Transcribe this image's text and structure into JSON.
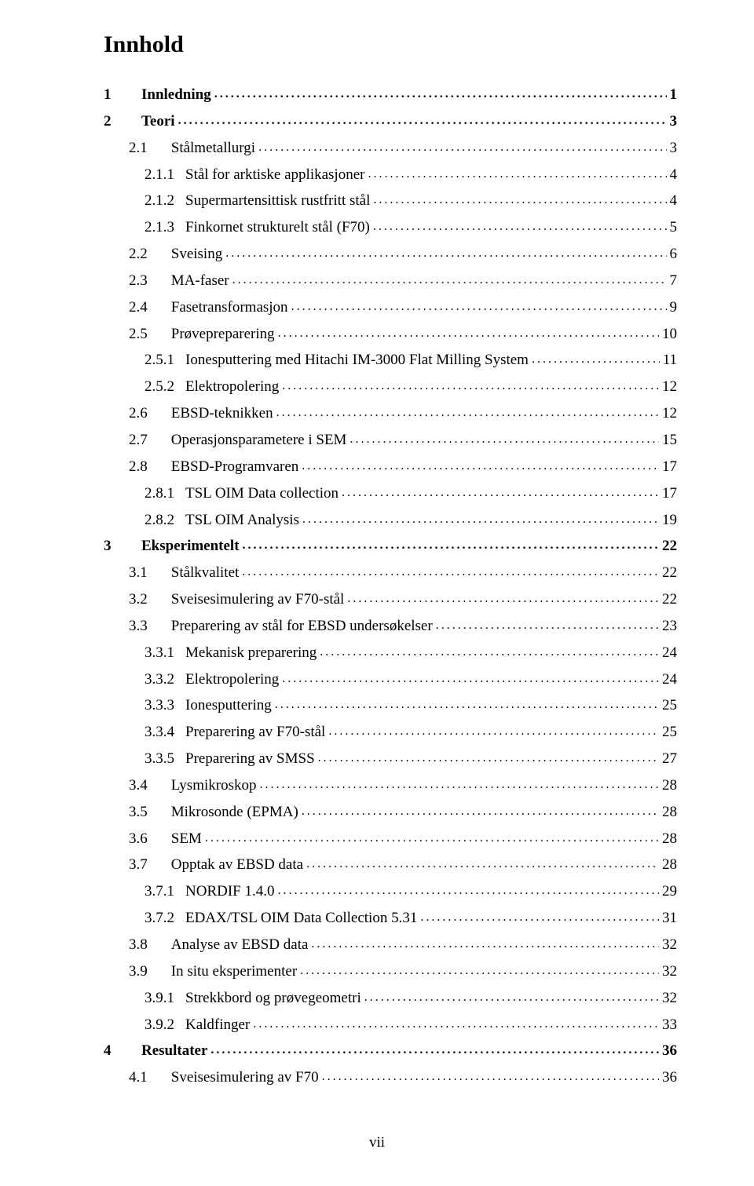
{
  "title": "Innhold",
  "page_number": "vii",
  "text_color": "#000000",
  "background_color": "#ffffff",
  "font_family": "Times New Roman",
  "base_font_size_pt": 14,
  "title_font_size_pt": 22,
  "entries": [
    {
      "level": 1,
      "num": "1",
      "label": "Innledning",
      "page": "1"
    },
    {
      "level": 1,
      "num": "2",
      "label": "Teori",
      "page": "3"
    },
    {
      "level": 2,
      "num": "2.1",
      "label": "Stålmetallurgi",
      "page": "3"
    },
    {
      "level": 3,
      "num": "2.1.1",
      "label": "Stål for arktiske applikasjoner",
      "page": "4"
    },
    {
      "level": 3,
      "num": "2.1.2",
      "label": "Supermartensittisk rustfritt stål",
      "page": "4"
    },
    {
      "level": 3,
      "num": "2.1.3",
      "label": "Finkornet strukturelt stål (F70)",
      "page": "5"
    },
    {
      "level": 2,
      "num": "2.2",
      "label": "Sveising",
      "page": "6"
    },
    {
      "level": 2,
      "num": "2.3",
      "label": "MA-faser",
      "page": "7"
    },
    {
      "level": 2,
      "num": "2.4",
      "label": "Fasetransformasjon",
      "page": "9"
    },
    {
      "level": 2,
      "num": "2.5",
      "label": "Prøvepreparering",
      "page": "10"
    },
    {
      "level": 3,
      "num": "2.5.1",
      "label": "Ionesputtering med Hitachi IM-3000 Flat Milling System",
      "page": "11"
    },
    {
      "level": 3,
      "num": "2.5.2",
      "label": "Elektropolering",
      "page": "12"
    },
    {
      "level": 2,
      "num": "2.6",
      "label": "EBSD-teknikken",
      "page": "12"
    },
    {
      "level": 2,
      "num": "2.7",
      "label": "Operasjonsparametere i SEM",
      "page": "15"
    },
    {
      "level": 2,
      "num": "2.8",
      "label": "EBSD-Programvaren",
      "page": "17"
    },
    {
      "level": 3,
      "num": "2.8.1",
      "label": "TSL OIM Data collection",
      "page": "17"
    },
    {
      "level": 3,
      "num": "2.8.2",
      "label": "TSL OIM Analysis",
      "page": "19"
    },
    {
      "level": 1,
      "num": "3",
      "label": "Eksperimentelt",
      "page": "22"
    },
    {
      "level": 2,
      "num": "3.1",
      "label": "Stålkvalitet",
      "page": "22"
    },
    {
      "level": 2,
      "num": "3.2",
      "label": "Sveisesimulering av F70-stål",
      "page": "22"
    },
    {
      "level": 2,
      "num": "3.3",
      "label": "Preparering av stål for EBSD undersøkelser",
      "page": "23"
    },
    {
      "level": 3,
      "num": "3.3.1",
      "label": "Mekanisk preparering",
      "page": "24"
    },
    {
      "level": 3,
      "num": "3.3.2",
      "label": "Elektropolering",
      "page": "24"
    },
    {
      "level": 3,
      "num": "3.3.3",
      "label": "Ionesputtering",
      "page": "25"
    },
    {
      "level": 3,
      "num": "3.3.4",
      "label": "Preparering av F70-stål",
      "page": "25"
    },
    {
      "level": 3,
      "num": "3.3.5",
      "label": "Preparering av SMSS",
      "page": "27"
    },
    {
      "level": 2,
      "num": "3.4",
      "label": "Lysmikroskop",
      "page": "28"
    },
    {
      "level": 2,
      "num": "3.5",
      "label": "Mikrosonde (EPMA)",
      "page": "28"
    },
    {
      "level": 2,
      "num": "3.6",
      "label": "SEM",
      "page": "28"
    },
    {
      "level": 2,
      "num": "3.7",
      "label": "Opptak av EBSD data",
      "page": "28"
    },
    {
      "level": 3,
      "num": "3.7.1",
      "label": "NORDIF 1.4.0",
      "page": "29"
    },
    {
      "level": 3,
      "num": "3.7.2",
      "label": "EDAX/TSL OIM Data Collection 5.31",
      "page": "31"
    },
    {
      "level": 2,
      "num": "3.8",
      "label": "Analyse av EBSD data",
      "page": "32"
    },
    {
      "level": 2,
      "num": "3.9",
      "label": "In situ eksperimenter",
      "page": "32"
    },
    {
      "level": 3,
      "num": "3.9.1",
      "label": "Strekkbord og prøvegeometri",
      "page": "32"
    },
    {
      "level": 3,
      "num": "3.9.2",
      "label": "Kaldfinger",
      "page": "33"
    },
    {
      "level": 1,
      "num": "4",
      "label": "Resultater",
      "page": "36"
    },
    {
      "level": 2,
      "num": "4.1",
      "label": "Sveisesimulering av F70",
      "page": "36"
    }
  ]
}
